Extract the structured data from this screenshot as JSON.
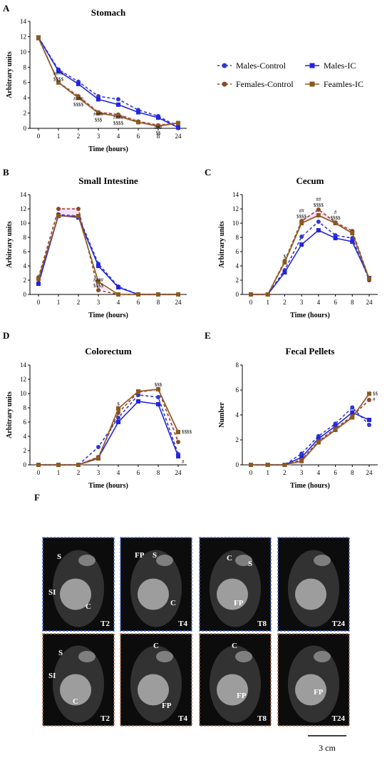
{
  "colors": {
    "males_control": "#2f37d6",
    "males_ic": "#2424e0",
    "females_control": "#8b4a22",
    "females_ic": "#8a5a1e",
    "ribbon": "#f2c6ee"
  },
  "legend": {
    "items": [
      {
        "label": "Males-Control",
        "color": "#2f37d6",
        "style": "dashed",
        "marker": "circle"
      },
      {
        "label": "Males-IC",
        "color": "#2424e0",
        "style": "solid",
        "marker": "square"
      },
      {
        "label": "Females-Control",
        "color": "#8b4a22",
        "style": "dashed",
        "marker": "circle"
      },
      {
        "label": "Feamles-IC",
        "color": "#8a5a1e",
        "style": "solid",
        "marker": "square"
      }
    ]
  },
  "chart_data": [
    {
      "panel": "A",
      "type": "line",
      "title": "Stomach",
      "x": [
        "0",
        "1",
        "2",
        "3",
        "4",
        "6",
        "8",
        "24"
      ],
      "xlabel": "Time (hours)",
      "ylabel": "Arbitrary units",
      "ylim": [
        0,
        14
      ],
      "yticks": [
        "0",
        "2",
        "4",
        "6",
        "8",
        "10",
        "12",
        "14"
      ],
      "series": [
        {
          "name": "Males-Control",
          "values": [
            11.9,
            7.7,
            6.1,
            4.2,
            3.8,
            2.4,
            1.6,
            0.2
          ]
        },
        {
          "name": "Males-IC",
          "values": [
            11.9,
            7.5,
            5.8,
            3.8,
            3.1,
            2.1,
            1.4,
            0.1
          ]
        },
        {
          "name": "Females-Control",
          "values": [
            11.9,
            6.0,
            4.2,
            2.1,
            1.8,
            0.9,
            0.4,
            0.7
          ]
        },
        {
          "name": "Feamles-IC",
          "values": [
            11.8,
            6.0,
            4.0,
            2.0,
            1.6,
            0.8,
            0.3,
            0.7
          ]
        }
      ],
      "annotations": [
        {
          "x": "1",
          "lines": [
            "####",
            "$$$$"
          ]
        },
        {
          "x": "2",
          "lines": [
            "####",
            "$$$$"
          ]
        },
        {
          "x": "3",
          "lines": [
            "####",
            "$$$"
          ]
        },
        {
          "x": "4",
          "lines": [
            "####",
            "$$$$"
          ]
        },
        {
          "x": "8",
          "lines": [
            "###",
            "$$"
          ]
        }
      ]
    },
    {
      "panel": "B",
      "type": "line",
      "title": "Small Intestine",
      "x": [
        "0",
        "1",
        "2",
        "3",
        "4",
        "6",
        "8",
        "24"
      ],
      "xlabel": "Time (hours)",
      "ylabel": "Arbitrary units",
      "ylim": [
        0,
        14
      ],
      "yticks": [
        "0",
        "2",
        "4",
        "6",
        "8",
        "10",
        "12",
        "14"
      ],
      "series": [
        {
          "name": "Males-Control",
          "values": [
            1.6,
            11.2,
            11.0,
            4.3,
            1.1,
            0.0,
            0.0,
            0.0
          ]
        },
        {
          "name": "Males-IC",
          "values": [
            1.5,
            11.1,
            10.8,
            4.0,
            1.0,
            0.0,
            0.0,
            0.0
          ]
        },
        {
          "name": "Females-Control",
          "values": [
            2.4,
            12.0,
            12.0,
            0.6,
            0.0,
            0.0,
            0.0,
            0.0
          ]
        },
        {
          "name": "Feamles-IC",
          "values": [
            2.2,
            11.0,
            11.0,
            1.8,
            0.0,
            0.0,
            0.0,
            0.0
          ]
        }
      ],
      "annotations": [
        {
          "x": "3",
          "lines": [
            "####",
            "$$$$"
          ]
        }
      ]
    },
    {
      "panel": "C",
      "type": "line",
      "title": "Cecum",
      "x": [
        "0",
        "1",
        "2",
        "3",
        "4",
        "6",
        "8",
        "24"
      ],
      "xlabel": "Time (hours)",
      "ylabel": "Arbitrary units",
      "ylim": [
        0,
        14
      ],
      "yticks": [
        "0",
        "2",
        "4",
        "6",
        "8",
        "10",
        "12",
        "14"
      ],
      "series": [
        {
          "name": "Males-Control",
          "values": [
            0,
            0,
            3.4,
            8.1,
            10.2,
            8.3,
            7.9,
            2.0
          ]
        },
        {
          "name": "Males-IC",
          "values": [
            0,
            0,
            3.1,
            7.0,
            9.0,
            7.9,
            7.4,
            2.3
          ]
        },
        {
          "name": "Females-Control",
          "values": [
            0,
            0,
            4.7,
            10.3,
            11.9,
            10.1,
            8.9,
            2.2
          ]
        },
        {
          "name": "Feamles-IC",
          "values": [
            0,
            0,
            4.5,
            10.0,
            11.1,
            10.0,
            8.6,
            2.2
          ]
        }
      ],
      "annotations": [
        {
          "x": "2",
          "lines": [
            "$"
          ]
        },
        {
          "x": "3",
          "lines": [
            "##",
            "$$$$"
          ]
        },
        {
          "x": "4",
          "lines": [
            "##",
            "$$$$"
          ]
        },
        {
          "x": "6",
          "lines": [
            "#",
            "$$$$"
          ]
        }
      ]
    },
    {
      "panel": "D",
      "type": "line",
      "title": "Colorectum",
      "x": [
        "0",
        "1",
        "2",
        "3",
        "4",
        "6",
        "8",
        "24"
      ],
      "xlabel": "Time (hours)",
      "ylabel": "Arbitrary units",
      "ylim": [
        0,
        14
      ],
      "yticks": [
        "0",
        "2",
        "4",
        "6",
        "8",
        "10",
        "12",
        "14"
      ],
      "series": [
        {
          "name": "Males-Control",
          "values": [
            0,
            0,
            0,
            2.5,
            6.6,
            9.8,
            9.5,
            1.5
          ]
        },
        {
          "name": "Males-IC",
          "values": [
            0,
            0,
            0,
            1.0,
            6.0,
            8.9,
            8.5,
            1.2
          ]
        },
        {
          "name": "Females-Control",
          "values": [
            0,
            0,
            0,
            1.1,
            7.3,
            10.2,
            10.6,
            3.2
          ]
        },
        {
          "name": "Feamles-IC",
          "values": [
            0,
            0,
            0,
            0.9,
            7.9,
            10.3,
            10.6,
            4.6
          ]
        }
      ],
      "annotations": [
        {
          "x": "4",
          "lines": [
            "$"
          ]
        },
        {
          "x": "8",
          "lines": [
            "$$$"
          ]
        },
        {
          "x": "24",
          "lines": [
            "$$$$"
          ],
          "side": "right"
        },
        {
          "x": "24",
          "lines": [
            "#"
          ],
          "side": "right2"
        }
      ]
    },
    {
      "panel": "E",
      "type": "line",
      "title": "Fecal Pellets",
      "x": [
        "0",
        "1",
        "2",
        "3",
        "4",
        "6",
        "8",
        "24"
      ],
      "xlabel": "Time (hours)",
      "ylabel": "Number",
      "ylim": [
        0,
        8
      ],
      "yticks": [
        "0",
        "2",
        "4",
        "6",
        "8"
      ],
      "series": [
        {
          "name": "Males-Control",
          "values": [
            0,
            0,
            0,
            0.9,
            2.3,
            3.3,
            4.6,
            3.2
          ]
        },
        {
          "name": "Males-IC",
          "values": [
            0,
            0,
            0,
            0.6,
            2.1,
            3.1,
            4.2,
            3.6
          ]
        },
        {
          "name": "Females-Control",
          "values": [
            0,
            0,
            0,
            0.4,
            1.9,
            2.9,
            3.9,
            5.2
          ]
        },
        {
          "name": "Feamles-IC",
          "values": [
            0,
            0,
            0,
            0.3,
            1.8,
            2.8,
            3.8,
            5.7
          ]
        }
      ],
      "annotations": [
        {
          "x": "24",
          "lines": [
            "$$",
            "#"
          ],
          "side": "right"
        }
      ]
    }
  ],
  "figure_f": {
    "letter": "F",
    "top_row": [
      {
        "id": "T2",
        "labels": [
          "S",
          "SI",
          "C"
        ]
      },
      {
        "id": "T4",
        "labels": [
          "FP",
          "S",
          "C"
        ]
      },
      {
        "id": "T8",
        "labels": [
          "C",
          "S",
          "FP"
        ]
      },
      {
        "id": "T24",
        "labels": []
      }
    ],
    "bottom_row": [
      {
        "id": "T2",
        "labels": [
          "S",
          "SI",
          "C"
        ]
      },
      {
        "id": "T4",
        "labels": [
          "C",
          "FP"
        ]
      },
      {
        "id": "T8",
        "labels": [
          "C",
          "FP"
        ]
      },
      {
        "id": "T24",
        "labels": [
          "FP"
        ]
      }
    ],
    "scale_bar": "3 cm",
    "top_border_color": "#4a66d8",
    "bottom_border_color": "#b06a48"
  }
}
